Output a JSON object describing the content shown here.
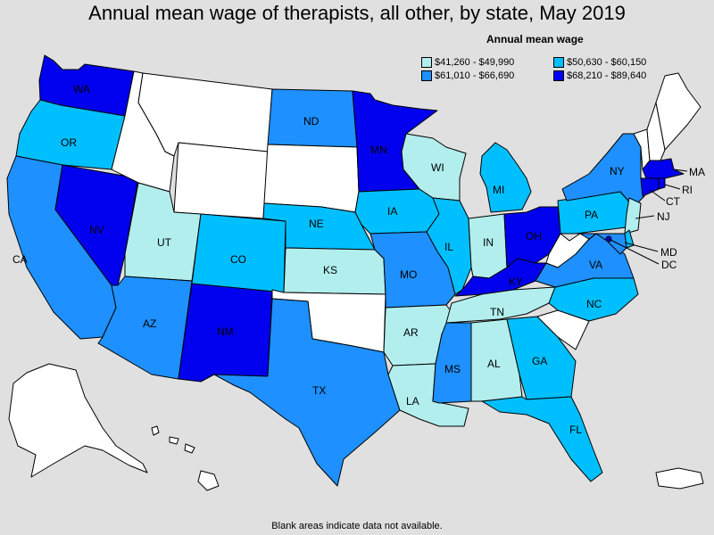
{
  "title": "Annual mean wage of therapists, all other, by state, May 2019",
  "legend": {
    "title": "Annual mean wage",
    "items": [
      {
        "label": "$41,260 - $49,990",
        "color": "#b2eeee"
      },
      {
        "label": "$50,630 - $60,150",
        "color": "#00bfff"
      },
      {
        "label": "$61,010 - $66,690",
        "color": "#1e90ff"
      },
      {
        "label": "$68,210 - $89,640",
        "color": "#0000ee"
      }
    ]
  },
  "footnote": "Blank areas indicate data not available.",
  "colors": {
    "none": "#ffffff",
    "c1": "#b2eeee",
    "c2": "#00bfff",
    "c3": "#1e90ff",
    "c4": "#0000ee"
  },
  "states": {
    "WA": "c4",
    "OR": "c2",
    "CA": "c3",
    "NV": "c4",
    "ID": "none",
    "MT": "none",
    "WY": "none",
    "UT": "c1",
    "AZ": "c3",
    "NM": "c4",
    "CO": "c2",
    "ND": "c3",
    "SD": "none",
    "NE": "c2",
    "KS": "c1",
    "OK": "none",
    "TX": "c3",
    "MN": "c4",
    "IA": "c2",
    "MO": "c3",
    "AR": "c1",
    "LA": "c1",
    "WI": "c1",
    "IL": "c2",
    "MI": "c2",
    "IN": "c1",
    "OH": "c4",
    "KY": "c4",
    "TN": "c1",
    "MS": "c3",
    "AL": "c1",
    "GA": "c2",
    "FL": "c2",
    "SC": "none",
    "NC": "c2",
    "VA": "c3",
    "WV": "none",
    "PA": "c2",
    "NY": "c3",
    "VT": "none",
    "NH": "none",
    "ME": "none",
    "MA": "c4",
    "RI": "c4",
    "CT": "c4",
    "NJ": "c1",
    "DE": "c2",
    "MD": "c3",
    "DC": "c4",
    "AK": "none",
    "HI": "none",
    "PR": "none"
  },
  "labels": {
    "WA": "WA",
    "OR": "OR",
    "CA": "CA",
    "NV": "NV",
    "UT": "UT",
    "AZ": "AZ",
    "NM": "NM",
    "CO": "CO",
    "ND": "ND",
    "NE": "NE",
    "KS": "KS",
    "TX": "TX",
    "MN": "MN",
    "IA": "IA",
    "MO": "MO",
    "AR": "AR",
    "LA": "LA",
    "WI": "WI",
    "IL": "IL",
    "MI": "MI",
    "IN": "IN",
    "OH": "OH",
    "KY": "KY",
    "TN": "TN",
    "MS": "MS",
    "AL": "AL",
    "GA": "GA",
    "FL": "FL",
    "NC": "NC",
    "VA": "VA",
    "PA": "PA",
    "NY": "NY",
    "MA": "MA",
    "RI": "RI",
    "CT": "CT",
    "NJ": "NJ",
    "MD": "MD",
    "DC": "DC"
  }
}
